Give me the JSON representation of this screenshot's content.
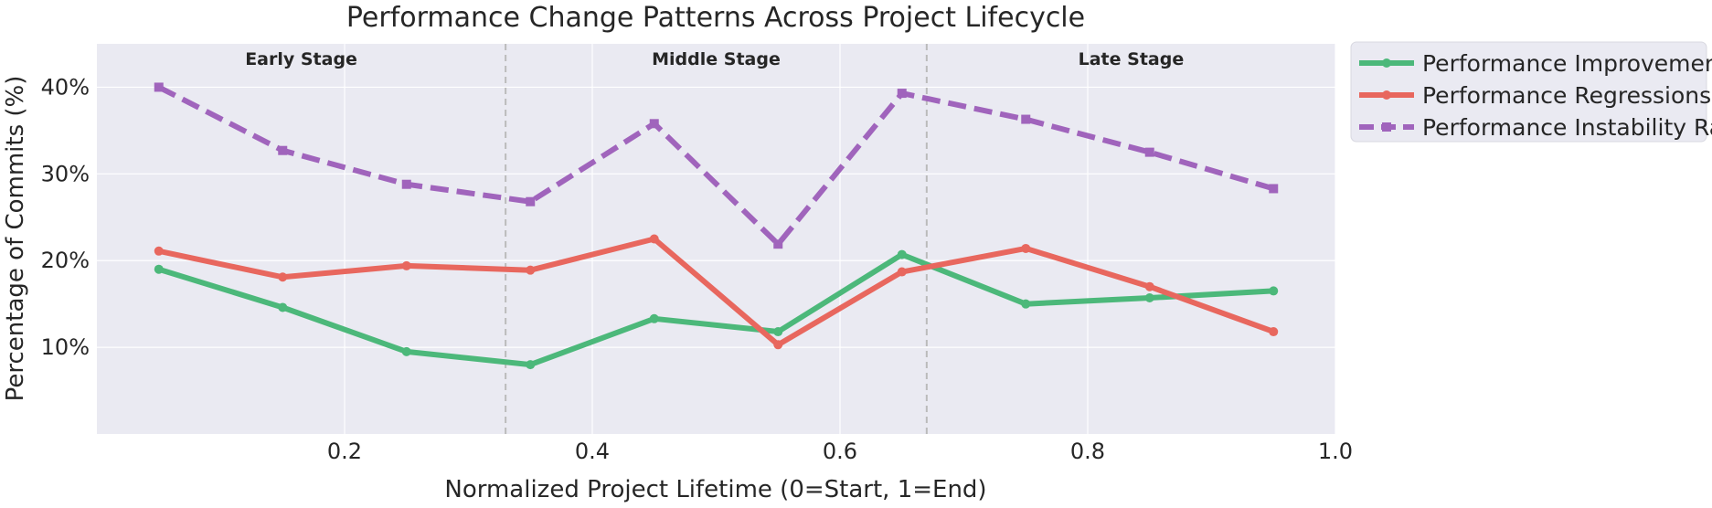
{
  "chart_data": {
    "type": "line",
    "title": "Performance Change Patterns Across Project Lifecycle",
    "xlabel": "Normalized Project Lifetime (0=Start, 1=End)",
    "ylabel": "Percentage of Commits (%)",
    "xlim": [
      0.0,
      1.0
    ],
    "ylim": [
      0,
      45
    ],
    "x_ticks": [
      0.2,
      0.4,
      0.6,
      0.8,
      1.0
    ],
    "x_tick_labels": [
      "0.2",
      "0.4",
      "0.6",
      "0.8",
      "1.0"
    ],
    "y_ticks": [
      10,
      20,
      30,
      40
    ],
    "y_tick_labels": [
      "10%",
      "20%",
      "30%",
      "40%"
    ],
    "grid": true,
    "legend_position": "outside right, top",
    "x": [
      0.05,
      0.15,
      0.25,
      0.35,
      0.45,
      0.55,
      0.65,
      0.75,
      0.85,
      0.95
    ],
    "series": [
      {
        "name": "Performance Improvements",
        "color": "#4cb87a",
        "style": "solid",
        "marker": "circle",
        "values": [
          19.0,
          14.6,
          9.5,
          8.0,
          13.3,
          11.8,
          20.7,
          15.0,
          15.7,
          16.5
        ]
      },
      {
        "name": "Performance Regressions",
        "color": "#e8675e",
        "style": "solid",
        "marker": "circle",
        "values": [
          21.1,
          18.1,
          19.4,
          18.9,
          22.5,
          10.3,
          18.7,
          21.4,
          17.0,
          11.8
        ]
      },
      {
        "name": "Performance Instability Rate",
        "color": "#a064bc",
        "style": "dashed",
        "marker": "square",
        "values": [
          40.0,
          32.7,
          28.8,
          26.8,
          35.8,
          21.9,
          39.3,
          36.3,
          32.5,
          28.3
        ]
      }
    ],
    "stage_dividers": [
      0.33,
      0.67
    ],
    "stages": [
      {
        "label": "Early Stage",
        "x": 0.165
      },
      {
        "label": "Middle Stage",
        "x": 0.5
      },
      {
        "label": "Late Stage",
        "x": 0.835
      }
    ]
  },
  "colors": {
    "plot_background": "#eaeaf2",
    "grid": "#ffffff",
    "divider": "#bbbbbb",
    "text": "#262626"
  }
}
